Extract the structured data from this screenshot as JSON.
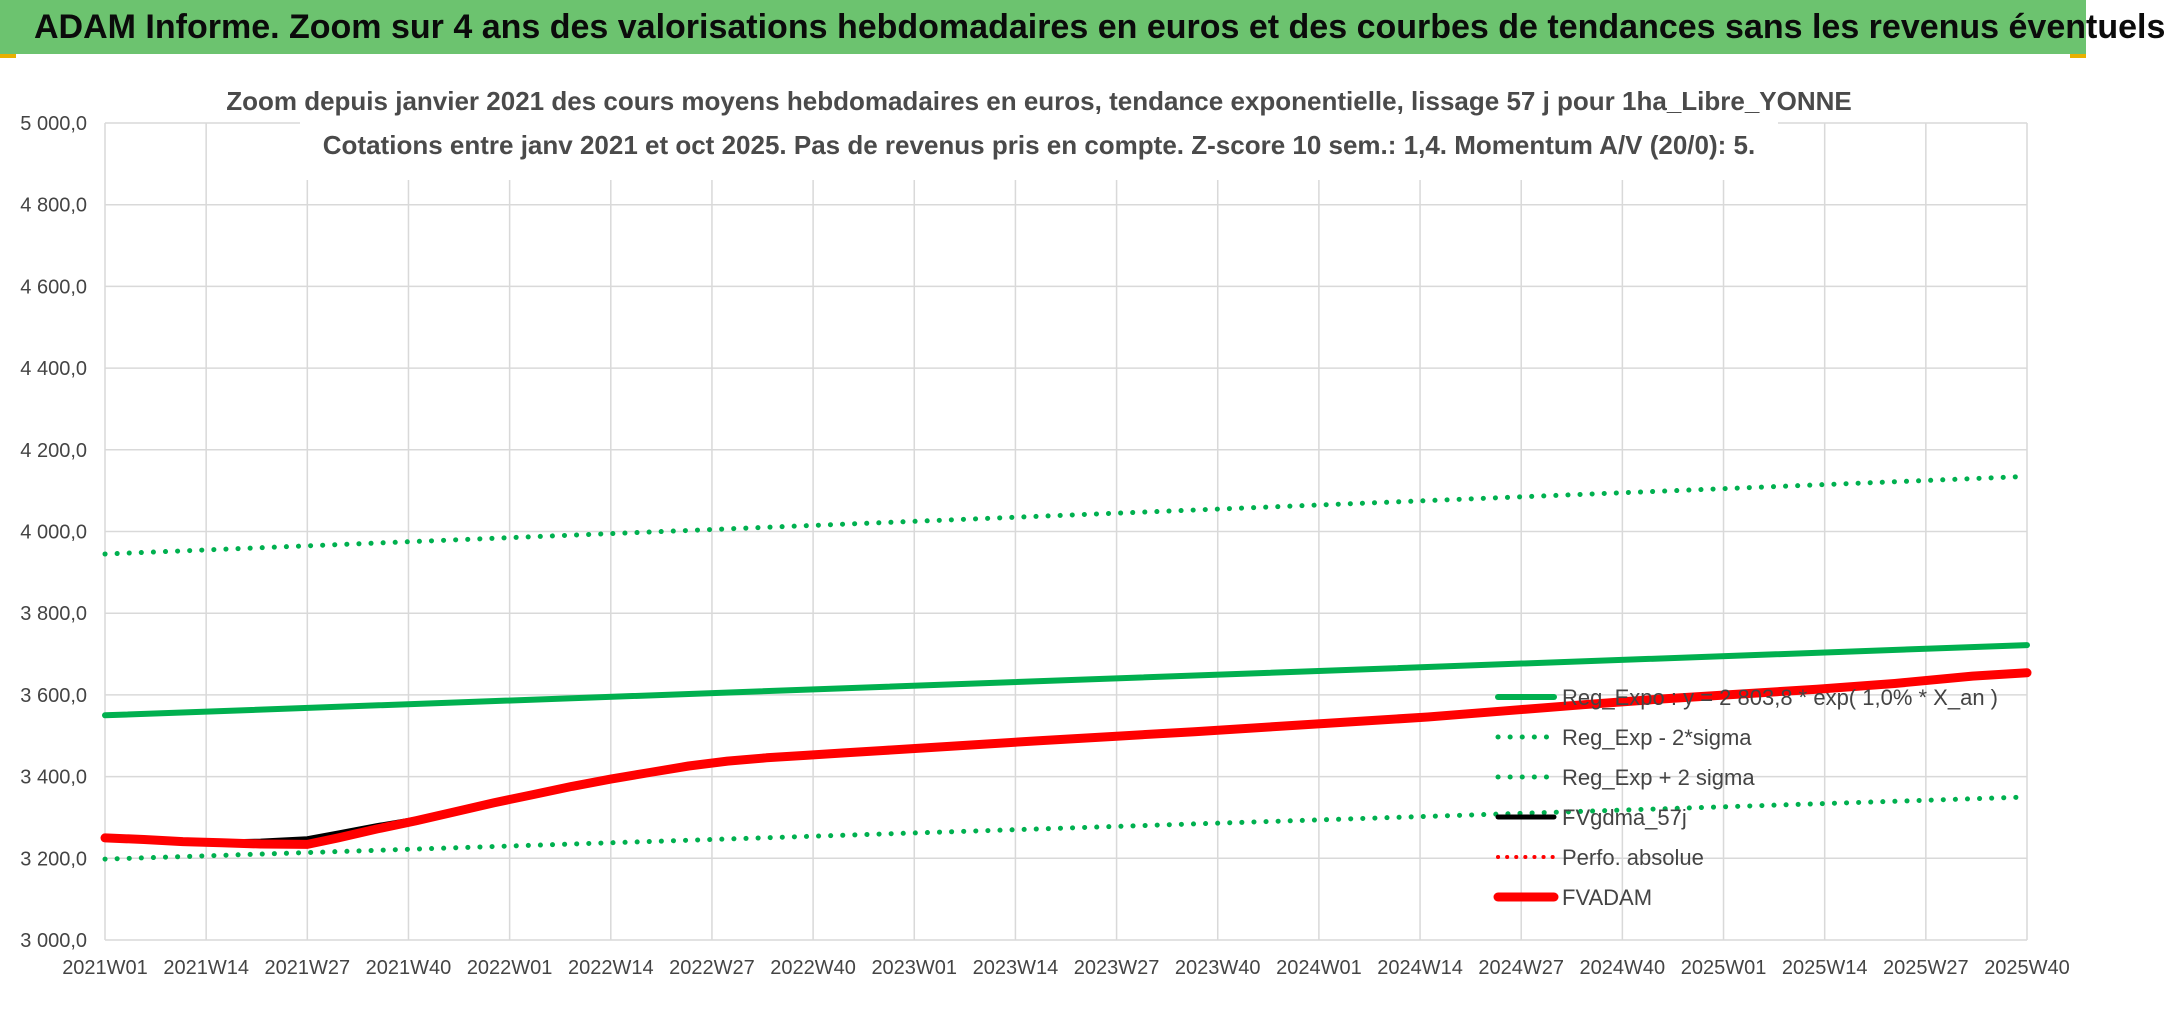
{
  "banner": {
    "title": "ADAM Informe. Zoom sur 4 ans des valorisations hebdomadaires en euros et des courbes de tendances sans les revenus éventuels"
  },
  "colors": {
    "green": "#00b04f",
    "red": "#ff0000",
    "black": "#000000",
    "grid": "#d9d9d9",
    "banner": "#6cc36f"
  },
  "chart_data": {
    "type": "line",
    "title_line1": "Zoom depuis janvier 2021 des cours moyens hebdomadaires en euros, tendance exponentielle, lissage 57 j pour 1ha_Libre_YONNE",
    "title_line2": "Cotations entre janv 2021 et oct 2025. Pas de revenus pris en compte. Z-score 10 sem.: 1,4. Momentum A/V (20/0): 5.",
    "ylim": [
      3000,
      5000
    ],
    "yticks": [
      3000,
      3200,
      3400,
      3600,
      3800,
      4000,
      4200,
      4400,
      4600,
      4800,
      5000
    ],
    "ytick_labels": [
      "3 000,0",
      "3 200,0",
      "3 400,0",
      "3 600,0",
      "3 800,0",
      "4 000,0",
      "4 200,0",
      "4 400,0",
      "4 600,0",
      "4 800,0",
      "5 000,0"
    ],
    "xlim": [
      0,
      247
    ],
    "x_tick_positions": [
      0,
      13,
      26,
      39,
      52,
      65,
      78,
      91,
      104,
      117,
      130,
      143,
      156,
      169,
      182,
      195,
      208,
      221,
      234,
      247
    ],
    "x_tick_labels": [
      "2021W01",
      "2021W14",
      "2021W27",
      "2021W40",
      "2022W01",
      "2022W14",
      "2022W27",
      "2022W40",
      "2023W01",
      "2023W14",
      "2023W27",
      "2023W40",
      "2024W01",
      "2024W14",
      "2024W27",
      "2024W40",
      "2025W01",
      "2025W14",
      "2025W27",
      "2025W40"
    ],
    "legend_position": "right",
    "series": [
      {
        "name": "Reg_Expo : y = 2 803,8 * exp( 1,0% * X_an )",
        "style": "solid-green",
        "x": [
          0,
          247
        ],
        "values": [
          3550,
          3722
        ]
      },
      {
        "name": "Reg_Exp - 2*sigma",
        "style": "dotted-green",
        "x": [
          0,
          247
        ],
        "values": [
          3198,
          3350
        ]
      },
      {
        "name": "Reg_Exp + 2 sigma",
        "style": "dotted-green",
        "x": [
          0,
          247
        ],
        "values": [
          3945,
          4135
        ]
      },
      {
        "name": "FVgdma_57j",
        "style": "solid-black",
        "x": [
          0,
          5,
          10,
          15,
          20,
          26,
          30,
          35,
          40,
          45,
          50,
          55,
          60,
          65,
          70,
          75,
          80,
          85,
          90,
          95,
          100,
          110,
          120,
          130,
          140,
          150,
          160,
          170,
          180,
          190,
          200,
          210,
          220,
          230,
          240,
          247
        ],
        "values": [
          3250,
          3246,
          3241,
          3240,
          3242,
          3248,
          3262,
          3280,
          3296,
          3316,
          3336,
          3356,
          3376,
          3394,
          3410,
          3428,
          3440,
          3448,
          3454,
          3460,
          3466,
          3478,
          3490,
          3501,
          3512,
          3524,
          3536,
          3548,
          3563,
          3578,
          3592,
          3604,
          3616,
          3630,
          3648,
          3655
        ]
      },
      {
        "name": "Perfo. absolue",
        "style": "dotted-red",
        "x": [],
        "values": []
      },
      {
        "name": "FVADAM",
        "style": "thick-red",
        "x": [
          0,
          5,
          10,
          15,
          20,
          26,
          30,
          35,
          40,
          45,
          50,
          55,
          60,
          65,
          70,
          75,
          80,
          85,
          90,
          95,
          100,
          110,
          120,
          130,
          140,
          150,
          160,
          170,
          180,
          190,
          200,
          210,
          220,
          230,
          240,
          247
        ],
        "values": [
          3250,
          3246,
          3241,
          3238,
          3235,
          3234,
          3250,
          3272,
          3292,
          3314,
          3336,
          3356,
          3376,
          3394,
          3410,
          3426,
          3438,
          3446,
          3452,
          3458,
          3464,
          3476,
          3488,
          3499,
          3510,
          3522,
          3534,
          3546,
          3561,
          3576,
          3590,
          3602,
          3614,
          3628,
          3646,
          3654
        ]
      }
    ]
  }
}
